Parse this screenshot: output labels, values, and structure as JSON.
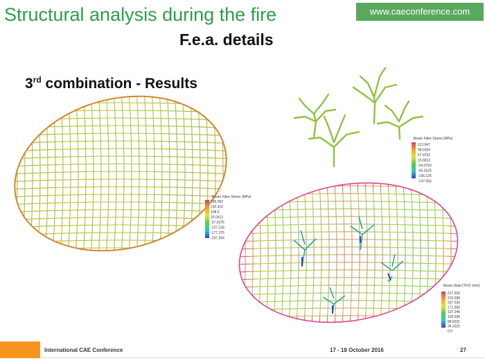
{
  "slide": {
    "title": "Structural analysis during the fire",
    "site": "www.caeconference.com",
    "subtitle": "F.e.a. details",
    "section_prefix": "3",
    "section_sup": "rd",
    "section_rest": " combination - Results"
  },
  "legend_left": {
    "title": "Beam Fibre Stress (MPa)",
    "values": [
      "186.052",
      "130.416",
      "108.2",
      "30.0613",
      "-37.0375",
      "-107.158",
      "-177.275",
      "-247.394"
    ]
  },
  "legend_trees": {
    "title": "Beam Fibre Stress (MPa)",
    "values": [
      "112.947",
      "98.5004",
      "57.9752",
      "16.6813",
      "-24.2750",
      "-65.2625",
      "-106.125",
      "-147.064"
    ]
  },
  "legend_bottom": {
    "title": "Beam Displ.(TFZ) (mm)",
    "values": [
      "217.525",
      "213.028",
      "207.535",
      "171.556",
      "137.246",
      "102.935",
      "68.6231",
      "34.3116",
      "0.0"
    ]
  },
  "footer": {
    "conference": "International CAE Conference",
    "dates": "17 - 18 October 2016",
    "page": "27"
  },
  "colors": {
    "title": "#2e9e48",
    "badge": "#5aa85e",
    "footer_accent": "#f7941d"
  }
}
